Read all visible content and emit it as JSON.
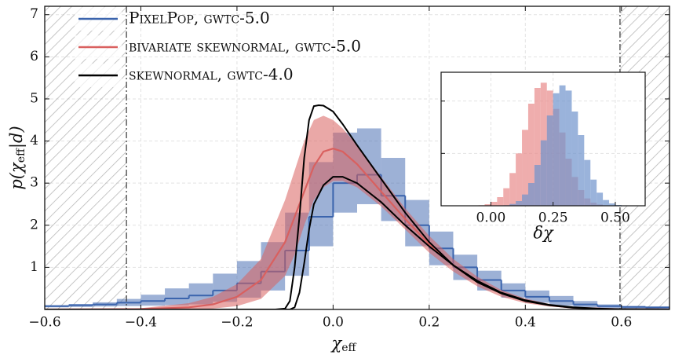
{
  "chart_data": {
    "type": "line",
    "x_label": {
      "symbol": "χ",
      "subscript": "eff"
    },
    "y_label": [
      "p(χ",
      "eff",
      "|d)"
    ],
    "xlim": [
      -0.6,
      0.7
    ],
    "xticks": [
      {
        "value": -0.6,
        "label": "−0.6"
      },
      {
        "value": -0.4,
        "label": "−0.4"
      },
      {
        "value": -0.2,
        "label": "−0.2"
      },
      {
        "value": 0,
        "label": "0.0"
      },
      0.2,
      0.4,
      0.6
    ],
    "ylim": [
      0,
      7.2
    ],
    "yticks": [
      1,
      2,
      3,
      4,
      5,
      6,
      7
    ],
    "grid": true,
    "legend": "upper left",
    "bounds": [
      -0.43,
      0.597
    ],
    "series": [
      {
        "name": "PixelPop, gwtc-5.0",
        "color": "#3b64ad",
        "style": "step",
        "bins": [
          -0.6,
          -0.55,
          -0.5,
          -0.45,
          -0.4,
          -0.35,
          -0.3,
          -0.25,
          -0.2,
          -0.15,
          -0.1,
          -0.05,
          0,
          0.05,
          0.1,
          0.15,
          0.2,
          0.25,
          0.3,
          0.35,
          0.4,
          0.45,
          0.5,
          0.55,
          0.6,
          0.65,
          0.7
        ],
        "values": [
          0.08,
          0.1,
          0.12,
          0.16,
          0.2,
          0.26,
          0.33,
          0.45,
          0.62,
          0.9,
          1.4,
          2.2,
          3.0,
          3.2,
          2.7,
          2.0,
          1.45,
          1.0,
          0.7,
          0.45,
          0.3,
          0.2,
          0.12,
          0.08,
          0.06,
          0.05
        ],
        "upper": [
          0.1,
          0.13,
          0.17,
          0.25,
          0.35,
          0.5,
          0.62,
          0.85,
          1.15,
          1.6,
          2.3,
          3.5,
          4.2,
          4.3,
          3.6,
          2.6,
          1.85,
          1.3,
          0.92,
          0.62,
          0.45,
          0.32,
          0.2,
          0.12,
          0.08,
          0.07
        ],
        "lower": [
          0.05,
          0.06,
          0.07,
          0.08,
          0.09,
          0.1,
          0.12,
          0.18,
          0.28,
          0.45,
          0.8,
          1.5,
          2.3,
          2.5,
          2.1,
          1.5,
          1.05,
          0.7,
          0.45,
          0.28,
          0.16,
          0.09,
          0.05,
          0.03,
          0.02,
          0.02
        ]
      },
      {
        "name": "bivariate skewnormal, gwtc-5.0",
        "color": "#d9605f",
        "style": "line",
        "x": [
          -0.6,
          -0.4,
          -0.3,
          -0.25,
          -0.2,
          -0.15,
          -0.1,
          -0.08,
          -0.06,
          -0.04,
          -0.02,
          0,
          0.02,
          0.05,
          0.1,
          0.15,
          0.2,
          0.25,
          0.3,
          0.35,
          0.4,
          0.45,
          0.5,
          0.6,
          0.7
        ],
        "values": [
          0,
          0.01,
          0.05,
          0.12,
          0.3,
          0.7,
          1.6,
          2.2,
          2.8,
          3.4,
          3.75,
          3.82,
          3.75,
          3.45,
          2.8,
          2.15,
          1.55,
          1.05,
          0.65,
          0.38,
          0.2,
          0.1,
          0.04,
          0.005,
          0
        ],
        "upper": [
          0,
          0.03,
          0.15,
          0.3,
          0.6,
          1.2,
          2.6,
          3.3,
          4.0,
          4.5,
          4.6,
          4.5,
          4.3,
          3.9,
          3.15,
          2.4,
          1.75,
          1.2,
          0.78,
          0.46,
          0.26,
          0.13,
          0.06,
          0.01,
          0
        ],
        "lower": [
          0,
          0,
          0.005,
          0.02,
          0.08,
          0.25,
          0.8,
          1.3,
          2.0,
          2.6,
          2.9,
          3.05,
          3.05,
          2.9,
          2.45,
          1.9,
          1.35,
          0.9,
          0.55,
          0.3,
          0.15,
          0.07,
          0.03,
          0.003,
          0
        ]
      },
      {
        "name": "skewnormal, gwtc-4.0",
        "color": "#000000",
        "style": "bounds",
        "x_upper": [
          -0.6,
          -0.12,
          -0.1,
          -0.09,
          -0.08,
          -0.07,
          -0.06,
          -0.05,
          -0.04,
          -0.03,
          -0.02,
          0,
          0.02,
          0.05,
          0.1,
          0.15,
          0.2,
          0.25,
          0.3,
          0.35,
          0.4,
          0.45,
          0.5,
          0.55,
          0.6,
          0.7
        ],
        "upper": [
          0,
          0,
          0.02,
          0.2,
          1.0,
          2.2,
          3.6,
          4.5,
          4.83,
          4.85,
          4.84,
          4.7,
          4.4,
          3.9,
          3.1,
          2.3,
          1.6,
          1.05,
          0.65,
          0.38,
          0.2,
          0.1,
          0.04,
          0.015,
          0.005,
          0
        ],
        "x_lower": [
          -0.6,
          -0.09,
          -0.08,
          -0.07,
          -0.06,
          -0.05,
          -0.04,
          -0.02,
          0,
          0.02,
          0.05,
          0.1,
          0.15,
          0.2,
          0.25,
          0.3,
          0.35,
          0.4,
          0.45,
          0.5,
          0.55,
          0.6,
          0.7
        ],
        "lower": [
          0,
          0,
          0.05,
          0.4,
          1.1,
          1.9,
          2.5,
          2.95,
          3.15,
          3.15,
          3.0,
          2.55,
          2.0,
          1.5,
          1.05,
          0.68,
          0.4,
          0.22,
          0.11,
          0.05,
          0.02,
          0.005,
          0
        ]
      }
    ],
    "inset": {
      "type": "histogram",
      "x_label": "δχ",
      "xlim": [
        -0.2,
        0.62
      ],
      "xticks": [
        {
          "value": 0,
          "label": "0.00"
        },
        {
          "value": 0.25,
          "label": "0.25"
        },
        {
          "value": 0.5,
          "label": "0.50"
        }
      ],
      "ylim": [
        0,
        5.1
      ],
      "yticks": [
        2,
        4
      ],
      "bins": [
        -0.05,
        -0.025,
        0,
        0.025,
        0.05,
        0.075,
        0.1,
        0.125,
        0.15,
        0.175,
        0.2,
        0.225,
        0.25,
        0.275,
        0.3,
        0.325,
        0.35,
        0.375,
        0.4,
        0.425,
        0.45,
        0.475,
        0.5,
        0.525,
        0.55,
        0.575
      ],
      "series": [
        {
          "color": "#e88a8a",
          "values": [
            0.02,
            0.06,
            0.15,
            0.33,
            0.67,
            1.25,
            2.0,
            2.9,
            3.9,
            4.5,
            4.7,
            4.4,
            3.7,
            2.8,
            1.8,
            1.1,
            0.6,
            0.28,
            0.12,
            0.05,
            0.01,
            0,
            0,
            0,
            0
          ]
        },
        {
          "color": "#6f93cc",
          "values": [
            0,
            0,
            0,
            0.01,
            0.02,
            0.07,
            0.18,
            0.43,
            0.87,
            1.56,
            2.5,
            3.45,
            4.3,
            4.6,
            4.4,
            3.6,
            2.7,
            1.75,
            1.0,
            0.5,
            0.22,
            0.09,
            0.03,
            0.01,
            0
          ]
        }
      ]
    }
  }
}
